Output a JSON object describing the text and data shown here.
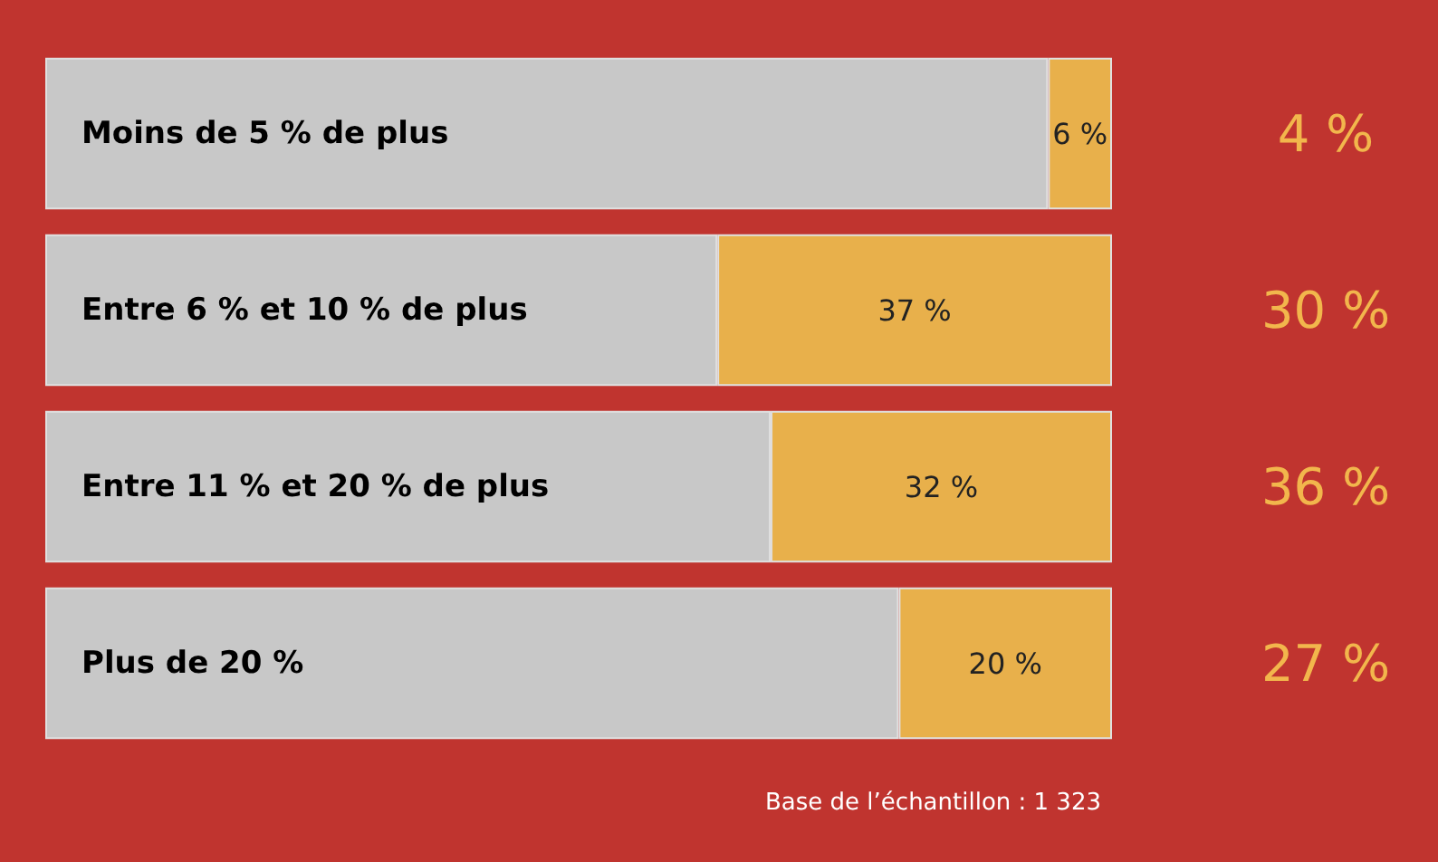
{
  "chart_data": {
    "type": "bar",
    "orientation": "horizontal",
    "stacked": true,
    "categories": [
      "Moins de 5 % de plus",
      "Entre 6 % et 10 % de plus",
      "Entre 11 % et 20 % de plus",
      "Plus de 20 %"
    ],
    "series": [
      {
        "color": "#c8c8c8",
        "values": [
          94,
          63,
          68,
          80
        ]
      },
      {
        "color": "#e8b04b",
        "values": [
          6,
          37,
          32,
          20
        ],
        "value_labels": [
          "6 %",
          "37 %",
          "32 %",
          "20 %"
        ]
      }
    ],
    "xlim": [
      0,
      100
    ],
    "tick_labels": false,
    "annotations": [
      "4 %",
      "30 %",
      "36 %",
      "27 %",
      "Base de l’échantillon : 1 323"
    ]
  }
}
